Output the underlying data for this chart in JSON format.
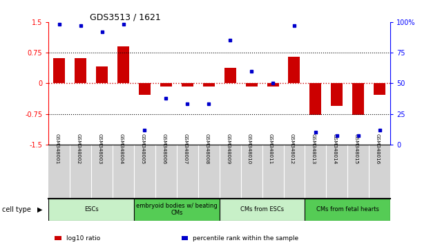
{
  "title": "GDS3513 / 1621",
  "samples": [
    "GSM348001",
    "GSM348002",
    "GSM348003",
    "GSM348004",
    "GSM348005",
    "GSM348006",
    "GSM348007",
    "GSM348008",
    "GSM348009",
    "GSM348010",
    "GSM348011",
    "GSM348012",
    "GSM348013",
    "GSM348014",
    "GSM348015",
    "GSM348016"
  ],
  "log10_ratio": [
    0.62,
    0.62,
    0.42,
    0.9,
    -0.28,
    -0.08,
    -0.08,
    -0.08,
    0.38,
    -0.08,
    -0.08,
    0.65,
    -0.78,
    -0.55,
    -0.78,
    -0.28
  ],
  "percentile_rank": [
    98,
    97,
    92,
    98,
    12,
    38,
    33,
    33,
    85,
    60,
    50,
    97,
    10,
    7,
    7,
    12
  ],
  "cell_groups": [
    {
      "label": "ESCs",
      "start": 0,
      "end": 3,
      "color": "#C8F0C8"
    },
    {
      "label": "embryoid bodies w/ beating\nCMs",
      "start": 4,
      "end": 7,
      "color": "#55CC55"
    },
    {
      "label": "CMs from ESCs",
      "start": 8,
      "end": 11,
      "color": "#C8F0C8"
    },
    {
      "label": "CMs from fetal hearts",
      "start": 12,
      "end": 15,
      "color": "#55CC55"
    }
  ],
  "bar_color": "#CC0000",
  "dot_color": "#0000CC",
  "ylim_left": [
    -1.5,
    1.5
  ],
  "ylim_right": [
    0,
    100
  ],
  "yticks_left": [
    -1.5,
    -0.75,
    0,
    0.75,
    1.5
  ],
  "yticks_right": [
    0,
    25,
    50,
    75,
    100
  ],
  "ytick_labels_right": [
    "0",
    "25",
    "50",
    "75",
    "100%"
  ],
  "dotted_lines": [
    -0.75,
    0.75
  ],
  "zero_line_color": "#CC0000",
  "background_color": "#ffffff",
  "sample_box_color": "#D3D3D3",
  "legend_items": [
    {
      "color": "#CC0000",
      "label": "log10 ratio"
    },
    {
      "color": "#0000CC",
      "label": "percentile rank within the sample"
    }
  ]
}
